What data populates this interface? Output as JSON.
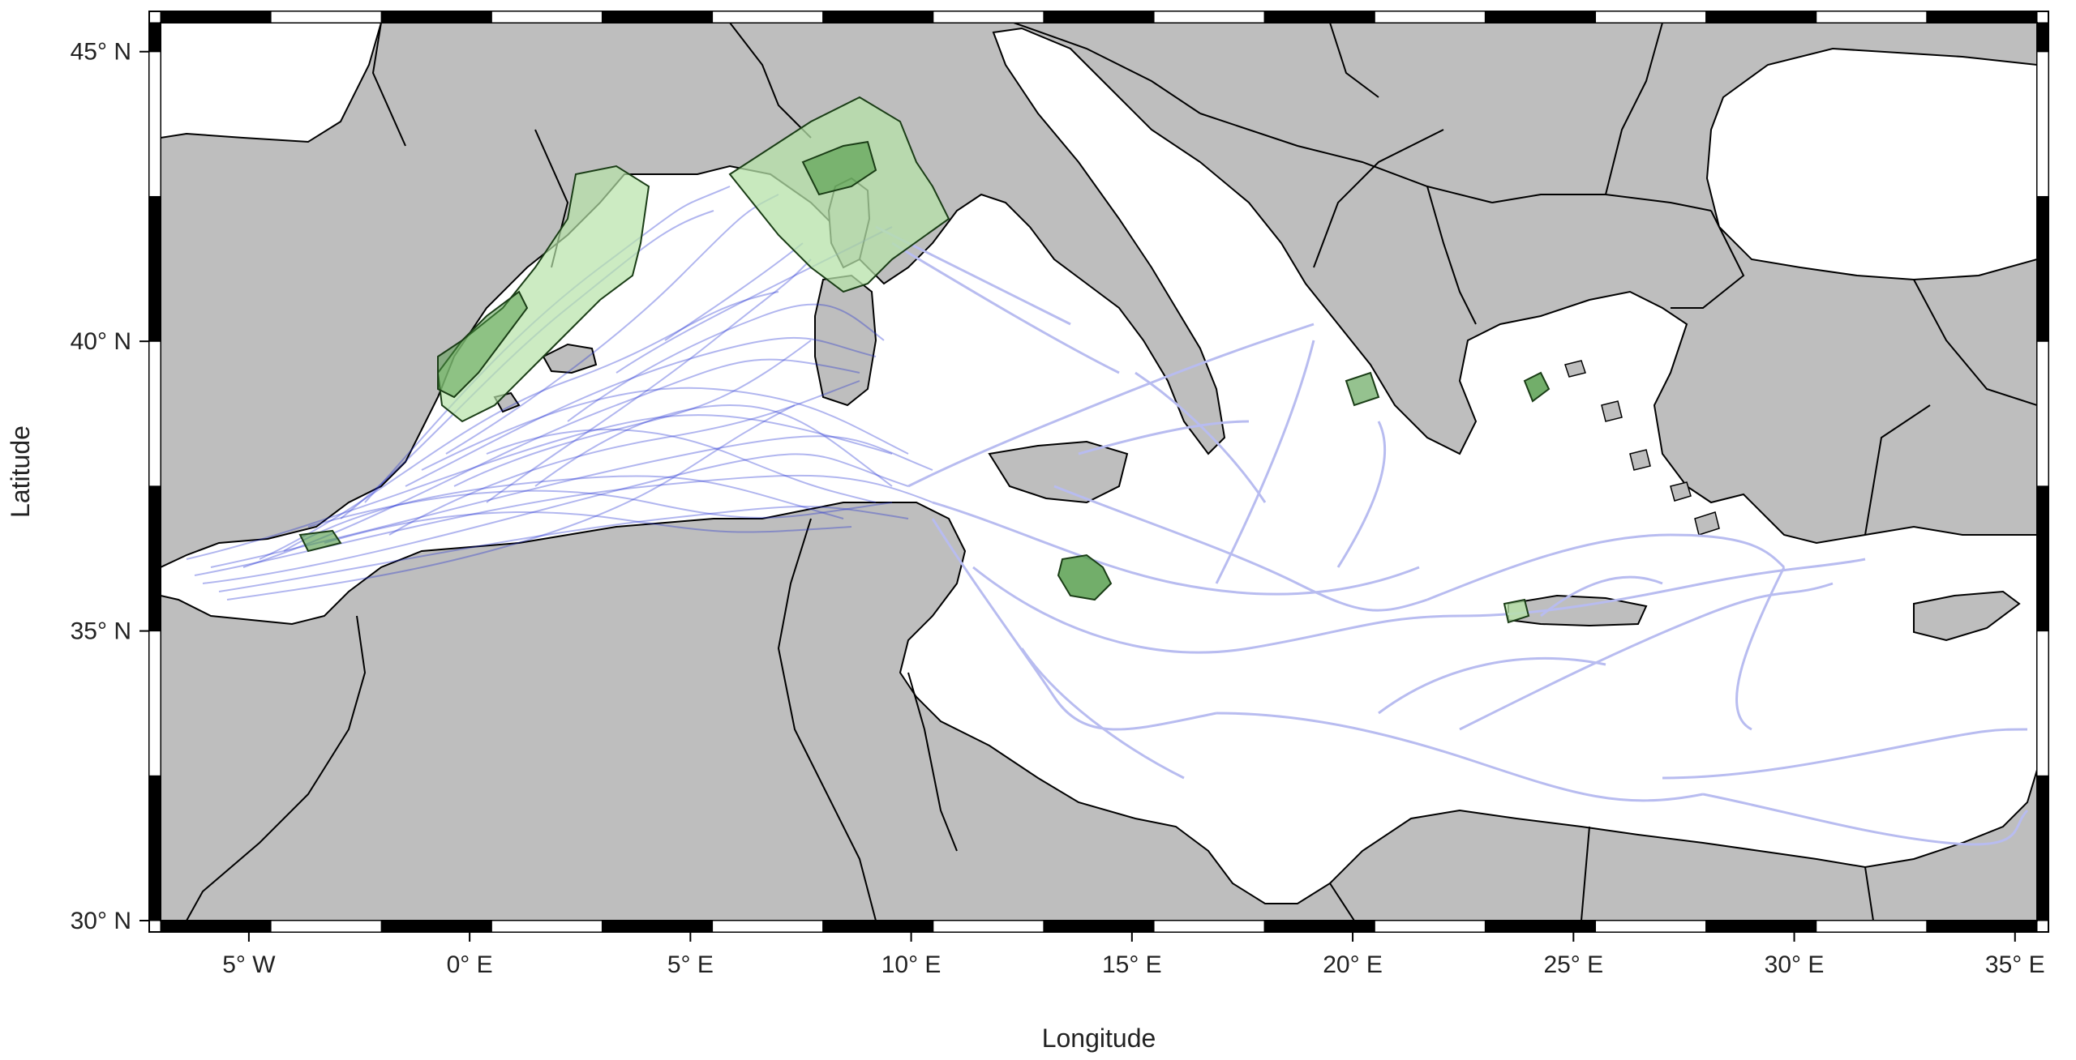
{
  "map": {
    "xlabel": "Longitude",
    "ylabel": "Latitude",
    "lon_range": [
      -7,
      35.5
    ],
    "lat_range": [
      30,
      45.5
    ],
    "colors": {
      "land": "#bebebe",
      "sea": "#ffffff",
      "borders": "#000000",
      "tracks_dense": "#1f2fd0",
      "tracks_light": "#b8bcf0",
      "protected_areas_light": "#b6e2a8",
      "protected_areas_dark": "#4f9a45"
    },
    "x_ticks": [
      {
        "value": -5,
        "label": "5° W"
      },
      {
        "value": 0,
        "label": "0° E"
      },
      {
        "value": 5,
        "label": "5° E"
      },
      {
        "value": 10,
        "label": "10° E"
      },
      {
        "value": 15,
        "label": "15° E"
      },
      {
        "value": 20,
        "label": "20° E"
      },
      {
        "value": 25,
        "label": "25° E"
      },
      {
        "value": 30,
        "label": "30° E"
      },
      {
        "value": 35,
        "label": "35° E"
      }
    ],
    "y_ticks": [
      {
        "value": 30,
        "label": "30° N"
      },
      {
        "value": 35,
        "label": "35° N"
      },
      {
        "value": 40,
        "label": "40° N"
      },
      {
        "value": 45,
        "label": "45° N"
      }
    ]
  }
}
